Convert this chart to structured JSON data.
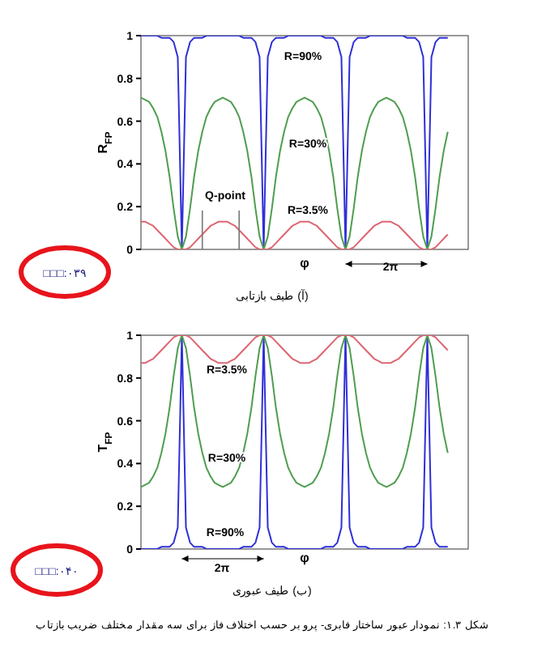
{
  "chart_data": [
    {
      "type": "line",
      "title": "(آ) طیف بازتابی",
      "xlabel": "φ",
      "ylabel": "R$_{FP}$",
      "ylim": [
        0,
        1
      ],
      "yticks": [
        0,
        0.2,
        0.4,
        0.6,
        0.8,
        1
      ],
      "tick_labels": "y",
      "grid": false,
      "legend": false,
      "marker": "none",
      "line_style": "solid",
      "annotations": [
        "Q-point",
        "2π",
        "□□□:۰۳۹"
      ],
      "categories": [
        null,
        null,
        null,
        null,
        null,
        null,
        null,
        null,
        null,
        null,
        null,
        null,
        null,
        null,
        null,
        null,
        null,
        null,
        null,
        null,
        null,
        null,
        null,
        null,
        null,
        null,
        null,
        null,
        null,
        null,
        null,
        null,
        null,
        null,
        null,
        null,
        null,
        null,
        null,
        null,
        null,
        null,
        null,
        null,
        null,
        null,
        null,
        null,
        null,
        null,
        null,
        null,
        null,
        null,
        null,
        null,
        null,
        null,
        null,
        null,
        null,
        null,
        null,
        null,
        null,
        null,
        null,
        null,
        null,
        null,
        null,
        null,
        null,
        null,
        null,
        null,
        null,
        null,
        null,
        null,
        null
      ],
      "series": [
        {
          "name": "R=90%",
          "color": "#2f2fd8",
          "values": [
            1,
            1,
            1,
            1,
            1,
            0.99,
            0.99,
            0.99,
            0.97,
            0.9,
            0,
            0.9,
            0.97,
            0.99,
            0.99,
            0.99,
            1,
            1,
            1,
            1,
            1,
            1,
            1,
            1,
            1,
            0.99,
            0.99,
            0.99,
            0.97,
            0.9,
            0,
            0.9,
            0.97,
            0.99,
            0.99,
            0.99,
            1,
            1,
            1,
            1,
            1,
            1,
            1,
            1,
            1,
            0.99,
            0.99,
            0.99,
            0.97,
            0.9,
            0,
            0.9,
            0.97,
            0.99,
            0.99,
            0.99,
            1,
            1,
            1,
            1,
            1,
            1,
            1,
            1,
            1,
            0.99,
            0.99,
            0.99,
            0.97,
            0.9,
            0,
            0.9,
            0.97,
            0.99,
            0.99,
            0.99,
            null,
            null,
            null,
            null,
            null
          ]
        },
        {
          "name": "R=30%",
          "color": "#4f9d4f",
          "values": [
            0.71,
            0.7,
            0.69,
            0.66,
            0.62,
            0.55,
            0.46,
            0.34,
            0.19,
            0.06,
            0,
            0.06,
            0.19,
            0.34,
            0.46,
            0.55,
            0.62,
            0.66,
            0.69,
            0.7,
            0.71,
            0.7,
            0.69,
            0.66,
            0.62,
            0.55,
            0.46,
            0.34,
            0.19,
            0.06,
            0,
            0.06,
            0.19,
            0.34,
            0.46,
            0.55,
            0.62,
            0.66,
            0.69,
            0.7,
            0.71,
            0.7,
            0.69,
            0.66,
            0.62,
            0.55,
            0.46,
            0.34,
            0.19,
            0.06,
            0,
            0.06,
            0.19,
            0.34,
            0.46,
            0.55,
            0.62,
            0.66,
            0.69,
            0.7,
            0.71,
            0.7,
            0.69,
            0.66,
            0.62,
            0.55,
            0.46,
            0.34,
            0.19,
            0.06,
            0,
            0.06,
            0.19,
            0.34,
            0.46,
            0.55,
            null,
            null,
            null,
            null,
            null
          ]
        },
        {
          "name": "R=3.5%",
          "color": "#dc6670",
          "values": [
            0.13,
            0.13,
            0.12,
            0.11,
            0.09,
            0.07,
            0.05,
            0.03,
            0.01,
            0,
            0,
            0,
            0.01,
            0.03,
            0.05,
            0.07,
            0.09,
            0.11,
            0.12,
            0.13,
            0.13,
            0.13,
            0.12,
            0.11,
            0.09,
            0.07,
            0.05,
            0.03,
            0.01,
            0,
            0,
            0,
            0.01,
            0.03,
            0.05,
            0.07,
            0.09,
            0.11,
            0.12,
            0.13,
            0.13,
            0.13,
            0.12,
            0.11,
            0.09,
            0.07,
            0.05,
            0.03,
            0.01,
            0,
            0,
            0,
            0.01,
            0.03,
            0.05,
            0.07,
            0.09,
            0.11,
            0.12,
            0.13,
            0.13,
            0.13,
            0.12,
            0.11,
            0.09,
            0.07,
            0.05,
            0.03,
            0.01,
            0,
            0,
            0,
            0.01,
            0.03,
            0.05,
            0.07,
            null,
            null,
            null,
            null,
            null
          ]
        }
      ]
    },
    {
      "type": "line",
      "title": "(ب) طیف عبوری",
      "xlabel": "φ",
      "ylabel": "T$_{FP}$",
      "ylim": [
        0,
        1
      ],
      "yticks": [
        0,
        0.2,
        0.4,
        0.6,
        0.8,
        1
      ],
      "tick_labels": "y",
      "grid": false,
      "legend": false,
      "marker": "none",
      "line_style": "solid",
      "annotations": [
        "2π",
        "□□□:۰۴۰",
        "شکل ۱.۳: نمودار عبور ساختار فابری- پرو بر حسب اختلاف فاز برای سه مقدار مختلف ضریب بازتاب"
      ],
      "categories": [
        null,
        null,
        null,
        null,
        null,
        null,
        null,
        null,
        null,
        null,
        null,
        null,
        null,
        null,
        null,
        null,
        null,
        null,
        null,
        null,
        null,
        null,
        null,
        null,
        null,
        null,
        null,
        null,
        null,
        null,
        null,
        null,
        null,
        null,
        null,
        null,
        null,
        null,
        null,
        null,
        null,
        null,
        null,
        null,
        null,
        null,
        null,
        null,
        null,
        null,
        null,
        null,
        null,
        null,
        null,
        null,
        null,
        null,
        null,
        null,
        null,
        null,
        null,
        null,
        null,
        null,
        null,
        null,
        null,
        null,
        null,
        null,
        null,
        null,
        null,
        null,
        null,
        null,
        null,
        null,
        null
      ],
      "series": [
        {
          "name": "R=90%",
          "color": "#2f2fd8",
          "values": [
            0,
            0,
            0,
            0,
            0,
            0.01,
            0.01,
            0.01,
            0.03,
            0.1,
            1,
            0.1,
            0.03,
            0.01,
            0.01,
            0.01,
            0,
            0,
            0,
            0,
            0,
            0,
            0,
            0,
            0,
            0.01,
            0.01,
            0.01,
            0.03,
            0.1,
            1,
            0.1,
            0.03,
            0.01,
            0.01,
            0.01,
            0,
            0,
            0,
            0,
            0,
            0,
            0,
            0,
            0,
            0.01,
            0.01,
            0.01,
            0.03,
            0.1,
            1,
            0.1,
            0.03,
            0.01,
            0.01,
            0.01,
            0,
            0,
            0,
            0,
            0,
            0,
            0,
            0,
            0,
            0.01,
            0.01,
            0.01,
            0.03,
            0.1,
            1,
            0.1,
            0.03,
            0.01,
            0.01,
            0.01,
            null,
            null,
            null,
            null,
            null
          ]
        },
        {
          "name": "R=30%",
          "color": "#4f9d4f",
          "values": [
            0.29,
            0.3,
            0.31,
            0.34,
            0.38,
            0.45,
            0.54,
            0.66,
            0.81,
            0.94,
            1,
            0.94,
            0.81,
            0.66,
            0.54,
            0.45,
            0.38,
            0.34,
            0.31,
            0.3,
            0.29,
            0.3,
            0.31,
            0.34,
            0.38,
            0.45,
            0.54,
            0.66,
            0.81,
            0.94,
            1,
            0.94,
            0.81,
            0.66,
            0.54,
            0.45,
            0.38,
            0.34,
            0.31,
            0.3,
            0.29,
            0.3,
            0.31,
            0.34,
            0.38,
            0.45,
            0.54,
            0.66,
            0.81,
            0.94,
            1,
            0.94,
            0.81,
            0.66,
            0.54,
            0.45,
            0.38,
            0.34,
            0.31,
            0.3,
            0.29,
            0.3,
            0.31,
            0.34,
            0.38,
            0.45,
            0.54,
            0.66,
            0.81,
            0.94,
            1,
            0.94,
            0.81,
            0.66,
            0.54,
            0.45,
            null,
            null,
            null,
            null,
            null
          ]
        },
        {
          "name": "R=3.5%",
          "color": "#dc6670",
          "values": [
            0.87,
            0.87,
            0.88,
            0.89,
            0.91,
            0.93,
            0.95,
            0.97,
            0.99,
            1,
            1,
            1,
            0.99,
            0.97,
            0.95,
            0.93,
            0.91,
            0.89,
            0.88,
            0.87,
            0.87,
            0.87,
            0.88,
            0.89,
            0.91,
            0.93,
            0.95,
            0.97,
            0.99,
            1,
            1,
            1,
            0.99,
            0.97,
            0.95,
            0.93,
            0.91,
            0.89,
            0.88,
            0.87,
            0.87,
            0.87,
            0.88,
            0.89,
            0.91,
            0.93,
            0.95,
            0.97,
            0.99,
            1,
            1,
            1,
            0.99,
            0.97,
            0.95,
            0.93,
            0.91,
            0.89,
            0.88,
            0.87,
            0.87,
            0.87,
            0.88,
            0.89,
            0.91,
            0.93,
            0.95,
            0.97,
            0.99,
            1,
            1,
            1,
            0.99,
            0.97,
            0.95,
            0.93,
            null,
            null,
            null,
            null,
            null
          ]
        }
      ]
    }
  ]
}
